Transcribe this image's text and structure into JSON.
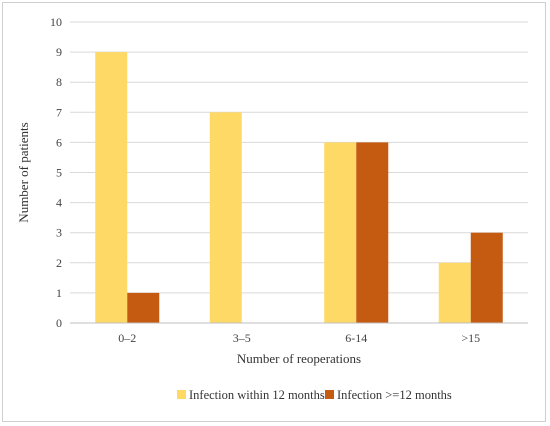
{
  "chart_data": {
    "type": "bar",
    "title": "",
    "xlabel": "Number of reoperations",
    "ylabel": "Number of patients",
    "categories": [
      "0–2",
      "3–5",
      "6-14",
      ">15"
    ],
    "ylim": [
      0,
      10
    ],
    "yticks": [
      0,
      1,
      2,
      3,
      4,
      5,
      6,
      7,
      8,
      9,
      10
    ],
    "grid": true,
    "legend": "bottom",
    "series": [
      {
        "name": "Infection within 12 months",
        "color": "#FFD966",
        "values": [
          9,
          7,
          6,
          2
        ]
      },
      {
        "name": "Infection >=12 months",
        "color": "#C55A11",
        "values": [
          1,
          0,
          6,
          3
        ]
      }
    ]
  }
}
